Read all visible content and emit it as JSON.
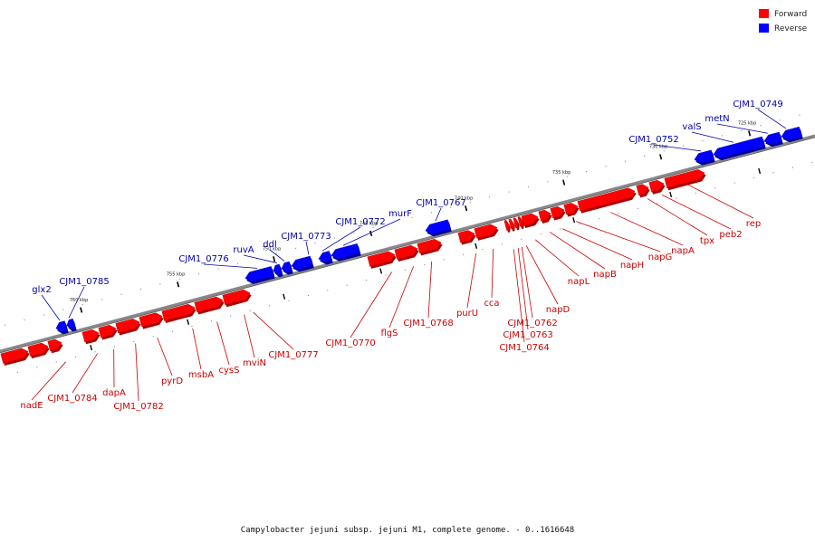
{
  "caption": "Campylobacter jejuni subsp. jejuni M1, complete genome. - 0..1616648",
  "legend": [
    {
      "label": "Forward",
      "color": "#ff0000"
    },
    {
      "label": "Reverse",
      "color": "#0000ff"
    }
  ],
  "colors": {
    "forward": "#ff0000",
    "forward_dark": "#aa0000",
    "reverse": "#0000ff",
    "reverse_dark": "#000099",
    "backbone": "#888888",
    "forward_label": "#cc0000",
    "reverse_label": "#0000aa"
  },
  "ticks": [
    {
      "label": "725 kbp"
    },
    {
      "label": "730 kbp"
    },
    {
      "label": "735 kbp"
    },
    {
      "label": "740 kbp"
    },
    {
      "label": "745 kbp"
    },
    {
      "label": "750 kbp"
    },
    {
      "label": "755 kbp"
    },
    {
      "label": "760 kbp"
    }
  ],
  "genes": {
    "forward": [
      {
        "label": "rep",
        "has_label": true
      },
      {
        "label": "peb2",
        "has_label": true
      },
      {
        "label": "tpx",
        "has_label": true
      },
      {
        "label": "napA",
        "has_label": true
      },
      {
        "label": "napG",
        "has_label": true
      },
      {
        "label": "napH",
        "has_label": true
      },
      {
        "label": "napB",
        "has_label": true
      },
      {
        "label": "napL",
        "has_label": true
      },
      {
        "label": "napD",
        "has_label": true
      },
      {
        "label": "CJM1_0762",
        "has_label": true
      },
      {
        "label": "CJM1_0763",
        "has_label": true
      },
      {
        "label": "CJM1_0764",
        "has_label": true
      },
      {
        "label": "cca",
        "has_label": true
      },
      {
        "label": "purU",
        "has_label": true
      },
      {
        "label": "CJM1_0768",
        "has_label": true
      },
      {
        "label": "flgS",
        "has_label": true
      },
      {
        "label": "CJM1_0770",
        "has_label": true
      },
      {
        "label": "CJM1_0777",
        "has_label": true
      },
      {
        "label": "mviN",
        "has_label": true
      },
      {
        "label": "cysS",
        "has_label": true
      },
      {
        "label": "msbA",
        "has_label": true
      },
      {
        "label": "pyrD",
        "has_label": true
      },
      {
        "label": "CJM1_0782",
        "has_label": true
      },
      {
        "label": "dapA",
        "has_label": true
      },
      {
        "label": "CJM1_0784",
        "has_label": true
      },
      {
        "label": "nadE",
        "has_label": true
      },
      {
        "label": "",
        "has_label": false
      }
    ],
    "reverse": [
      {
        "label": "CJM1_0749",
        "has_label": true
      },
      {
        "label": "metN",
        "has_label": true
      },
      {
        "label": "valS",
        "has_label": true
      },
      {
        "label": "CJM1_0752",
        "has_label": true
      },
      {
        "label": "CJM1_0767",
        "has_label": true
      },
      {
        "label": "murF",
        "has_label": true
      },
      {
        "label": "CJM1_0772",
        "has_label": true
      },
      {
        "label": "CJM1_0773",
        "has_label": true
      },
      {
        "label": "ddl",
        "has_label": true
      },
      {
        "label": "ruvA",
        "has_label": true
      },
      {
        "label": "CJM1_0776",
        "has_label": true
      },
      {
        "label": "CJM1_0785",
        "has_label": true
      },
      {
        "label": "glx2",
        "has_label": true
      }
    ]
  }
}
